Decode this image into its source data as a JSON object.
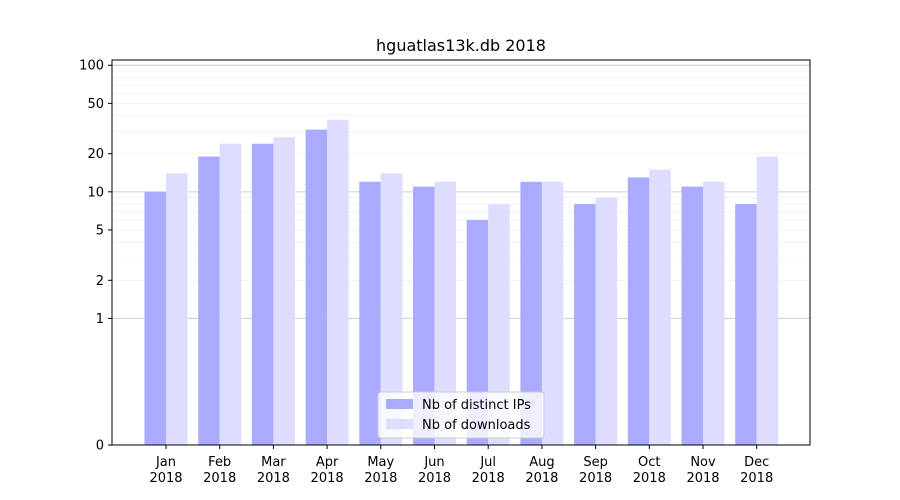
{
  "chart_data": {
    "type": "bar",
    "title": "hguatlas13k.db 2018",
    "xlabel": "",
    "ylabel": "",
    "y_scale": "symlog",
    "ylim": [
      0,
      110
    ],
    "y_ticks": [
      0,
      1,
      2,
      5,
      10,
      20,
      50,
      100
    ],
    "grid": "horizontal",
    "legend_position": "bottom-center",
    "categories": [
      [
        "Jan",
        "2018"
      ],
      [
        "Feb",
        "2018"
      ],
      [
        "Mar",
        "2018"
      ],
      [
        "Apr",
        "2018"
      ],
      [
        "May",
        "2018"
      ],
      [
        "Jun",
        "2018"
      ],
      [
        "Jul",
        "2018"
      ],
      [
        "Aug",
        "2018"
      ],
      [
        "Sep",
        "2018"
      ],
      [
        "Oct",
        "2018"
      ],
      [
        "Nov",
        "2018"
      ],
      [
        "Dec",
        "2018"
      ]
    ],
    "series": [
      {
        "name": "Nb of distinct IPs",
        "color": "#aaaaff",
        "values": [
          10,
          19,
          24,
          31,
          12,
          11,
          6,
          12,
          8,
          13,
          11,
          8
        ]
      },
      {
        "name": "Nb of downloads",
        "color": "#ddddff",
        "values": [
          14,
          24,
          27,
          37,
          14,
          12,
          8,
          12,
          9,
          15,
          12,
          19
        ]
      }
    ]
  }
}
